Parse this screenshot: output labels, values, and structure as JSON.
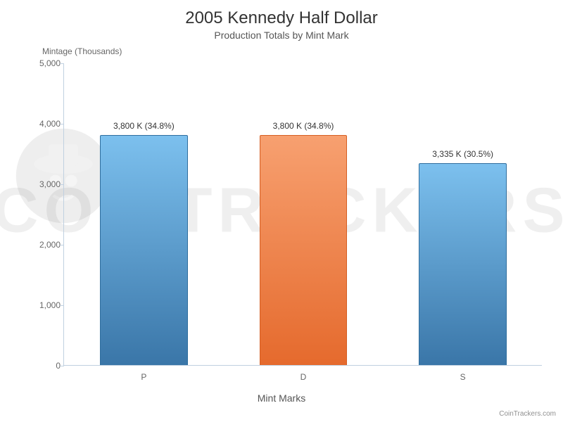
{
  "chart": {
    "type": "bar",
    "title": "2005 Kennedy Half Dollar",
    "subtitle": "Production Totals by Mint Mark",
    "title_fontsize": 24,
    "subtitle_fontsize": 14,
    "title_color": "#333333",
    "subtitle_color": "#555555",
    "y_axis_title": "Mintage (Thousands)",
    "x_axis_title": "Mint Marks",
    "axis_label_fontsize": 12,
    "axis_title_fontsize": 14,
    "background_color": "#ffffff",
    "axis_line_color": "#c0d0e0",
    "tick_label_color": "#666666",
    "ylim": [
      0,
      5000
    ],
    "ytick_step": 1000,
    "yticks": [
      "0",
      "1,000",
      "2,000",
      "3,000",
      "4,000",
      "5,000"
    ],
    "categories": [
      "P",
      "D",
      "S"
    ],
    "values": [
      3800,
      3800,
      3335
    ],
    "value_labels": [
      "3,800 K (34.8%)",
      "3,800 K (34.8%)",
      "3,335 K (30.5%)"
    ],
    "bar_gradients": [
      {
        "top": "#7cc0ee",
        "bottom": "#3a76a8",
        "border": "#2f6e9e"
      },
      {
        "top": "#f7a070",
        "bottom": "#e56a2d",
        "border": "#d65f23"
      },
      {
        "top": "#7cc0ee",
        "bottom": "#3a76a8",
        "border": "#2f6e9e"
      }
    ],
    "bar_width_ratio": 0.55,
    "value_label_fontsize": 12,
    "watermark_text": "COINTRACKERS",
    "credits": "CoinTrackers.com"
  }
}
